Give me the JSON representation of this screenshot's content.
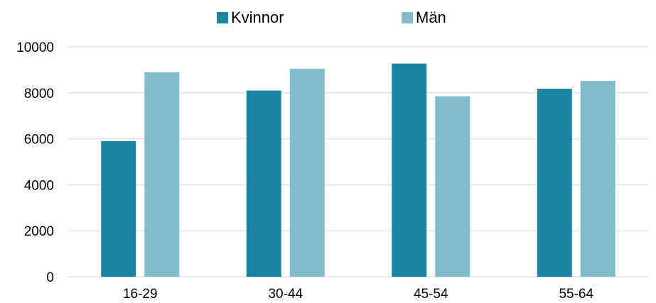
{
  "chart_data": {
    "type": "bar",
    "title": "",
    "xlabel": "",
    "ylabel": "",
    "categories": [
      "16-29",
      "30-44",
      "45-54",
      "55-64"
    ],
    "series": [
      {
        "name": "Kvinnor",
        "color": "#1b84a0",
        "values": [
          5900,
          8100,
          9270,
          8180
        ]
      },
      {
        "name": "Män",
        "color": "#82bccc",
        "values": [
          8900,
          9050,
          7850,
          8520
        ]
      }
    ],
    "ylim": [
      0,
      10000
    ],
    "yticks": [
      "0",
      "2000",
      "4000",
      "6000",
      "8000",
      "10000"
    ],
    "grid": true,
    "legend_position": "top"
  }
}
